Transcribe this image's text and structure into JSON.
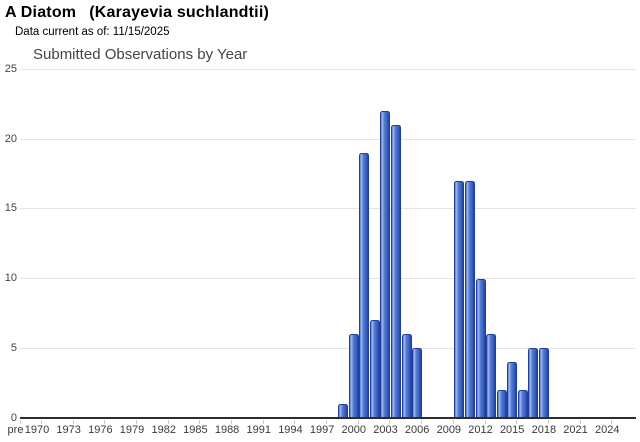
{
  "header": {
    "title_common": "A Diatom",
    "title_scientific": "(Karayevia suchlandtii)",
    "subtitle": "Data current as of: 11/15/2025"
  },
  "chart_data": {
    "type": "bar",
    "title": "Submitted Observations by Year",
    "xlabel": "",
    "ylabel": "",
    "ylim": [
      0,
      25
    ],
    "y_ticks": [
      0,
      5,
      10,
      15,
      20,
      25
    ],
    "x_tick_labels": [
      "pre",
      "1970",
      "1973",
      "1976",
      "1979",
      "1982",
      "1985",
      "1988",
      "1991",
      "1994",
      "1997",
      "2000",
      "2003",
      "2006",
      "2009",
      "2012",
      "2015",
      "2018",
      "2021",
      "2024"
    ],
    "grid": true,
    "legend": "none",
    "series": [
      {
        "name": "Submitted Observations",
        "points": [
          {
            "year": 1999,
            "value": 1
          },
          {
            "year": 2000,
            "value": 6
          },
          {
            "year": 2001,
            "value": 19
          },
          {
            "year": 2002,
            "value": 7
          },
          {
            "year": 2003,
            "value": 22
          },
          {
            "year": 2004,
            "value": 21
          },
          {
            "year": 2005,
            "value": 6
          },
          {
            "year": 2006,
            "value": 5
          },
          {
            "year": 2010,
            "value": 17
          },
          {
            "year": 2011,
            "value": 17
          },
          {
            "year": 2012,
            "value": 10
          },
          {
            "year": 2013,
            "value": 6
          },
          {
            "year": 2014,
            "value": 2
          },
          {
            "year": 2015,
            "value": 4
          },
          {
            "year": 2016,
            "value": 2
          },
          {
            "year": 2017,
            "value": 5
          },
          {
            "year": 2018,
            "value": 5
          }
        ]
      }
    ],
    "colors": {
      "bar_fill": "#4d79d4",
      "bar_highlight": "#9fb6ec",
      "bar_shade": "#3a60c2",
      "bar_edge": "#20409c",
      "gridline": "#e4e4e4",
      "axis_line": "#2d2d2d",
      "tick_mark": "#cccccc",
      "axis_label": "#3a3a3a",
      "chart_title": "#444444"
    }
  }
}
